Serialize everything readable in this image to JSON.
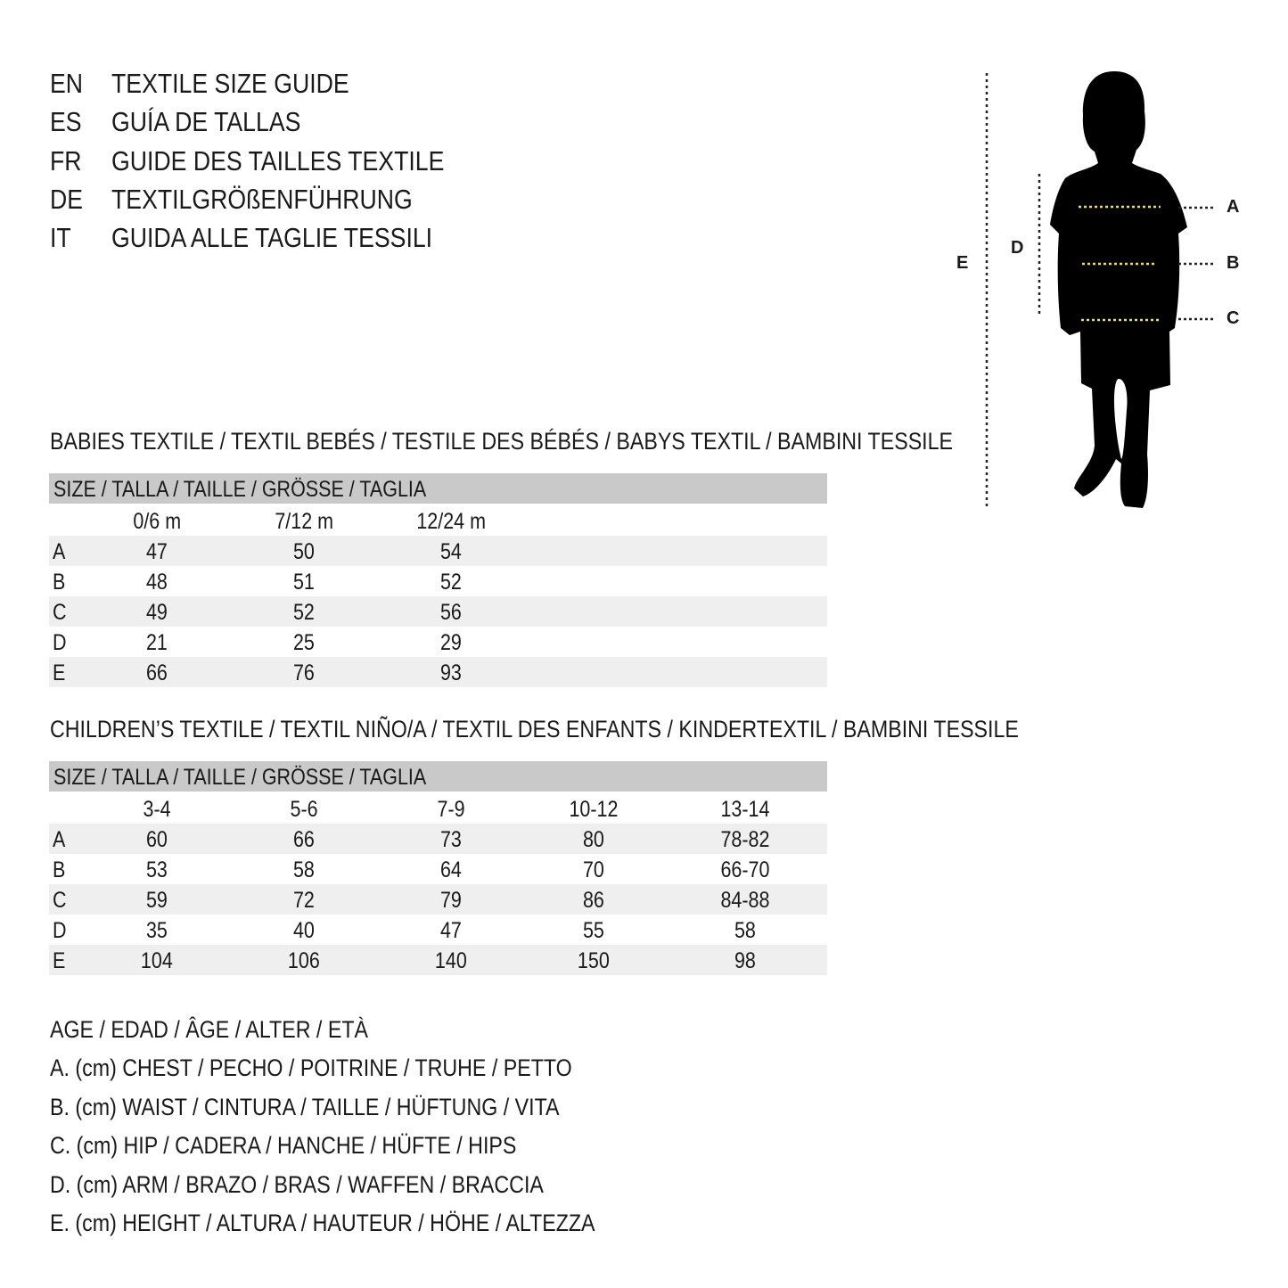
{
  "titles": [
    {
      "code": "EN",
      "text": "TEXTILE SIZE GUIDE"
    },
    {
      "code": "ES",
      "text": "GUÍA DE TALLAS"
    },
    {
      "code": "FR",
      "text": "GUIDE DES TAILLES TEXTILE"
    },
    {
      "code": "DE",
      "text": "TEXTILGRÖßENFÜHRUNG"
    },
    {
      "code": "IT",
      "text": "GUIDA ALLE TAGLIE TESSILI"
    }
  ],
  "figure": {
    "labels": {
      "A": "A",
      "B": "B",
      "C": "C",
      "D": "D",
      "E": "E"
    },
    "measure_line_color": "#f2e23a"
  },
  "babies": {
    "title": "BABIES TEXTILE / TEXTIL BEBÉS / TESTILE DES BÉBÉS / BABYS TEXTIL / BAMBINI TESSILE",
    "header": "SIZE / TALLA / TAILLE / GRÖSSE / TAGLIA",
    "columns": [
      "0/6 m",
      "7/12 m",
      "12/24 m"
    ],
    "rows": [
      {
        "label": "A",
        "values": [
          "47",
          "50",
          "54"
        ]
      },
      {
        "label": "B",
        "values": [
          "48",
          "51",
          "52"
        ]
      },
      {
        "label": "C",
        "values": [
          "49",
          "52",
          "56"
        ]
      },
      {
        "label": "D",
        "values": [
          "21",
          "25",
          "29"
        ]
      },
      {
        "label": "E",
        "values": [
          "66",
          "76",
          "93"
        ]
      }
    ]
  },
  "children": {
    "title": "CHILDREN’S TEXTILE / TEXTIL NIÑO/A / TEXTIL DES ENFANTS / KINDERTEXTIL / BAMBINI TESSILE",
    "header": "SIZE / TALLA / TAILLE / GRÖSSE / TAGLIA",
    "columns": [
      "3-4",
      "5-6",
      "7-9",
      "10-12",
      "13-14"
    ],
    "rows": [
      {
        "label": "A",
        "values": [
          "60",
          "66",
          "73",
          "80",
          "78-82"
        ]
      },
      {
        "label": "B",
        "values": [
          "53",
          "58",
          "64",
          "70",
          "66-70"
        ]
      },
      {
        "label": "C",
        "values": [
          "59",
          "72",
          "79",
          "86",
          "84-88"
        ]
      },
      {
        "label": "D",
        "values": [
          "35",
          "40",
          "47",
          "55",
          "58"
        ]
      },
      {
        "label": "E",
        "values": [
          "104",
          "106",
          "140",
          "150",
          "98"
        ]
      }
    ]
  },
  "legend": [
    "AGE / EDAD / ÂGE / ALTER / ETÀ",
    "A. (cm) CHEST / PECHO / POITRINE / TRUHE / PETTO",
    "B. (cm) WAIST / CINTURA / TAILLE / HÜFTUNG / VITA",
    "C. (cm) HIP / CADERA / HANCHE / HÜFTE / HIPS",
    "D. (cm) ARM / BRAZO / BRAS / WAFFEN / BRACCIA",
    "E. (cm) HEIGHT / ALTURA / HAUTEUR / HÖHE / ALTEZZA"
  ]
}
